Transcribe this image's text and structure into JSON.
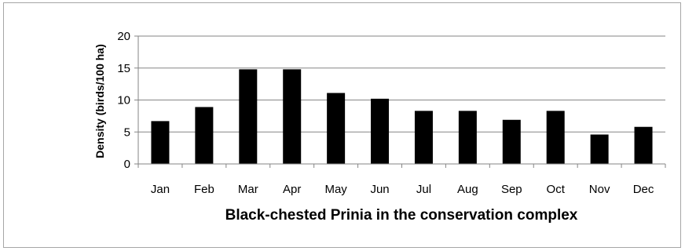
{
  "chart_data": {
    "type": "bar",
    "title": "",
    "xlabel": "Black-chested Prinia in the conservation complex",
    "ylabel": "Density (birds/100 ha)",
    "categories": [
      "Jan",
      "Feb",
      "Mar",
      "Apr",
      "May",
      "Jun",
      "Jul",
      "Aug",
      "Sep",
      "Oct",
      "Nov",
      "Dec"
    ],
    "values": [
      6.7,
      8.9,
      14.8,
      14.8,
      11.1,
      10.2,
      8.3,
      8.3,
      6.9,
      8.3,
      4.6,
      5.8
    ],
    "ylim": [
      0,
      20
    ],
    "yticks": [
      "0",
      "5",
      "10",
      "15",
      "20"
    ],
    "grid": true,
    "legend": "none",
    "bar_color": "#000000",
    "grid_color": "#868686"
  }
}
